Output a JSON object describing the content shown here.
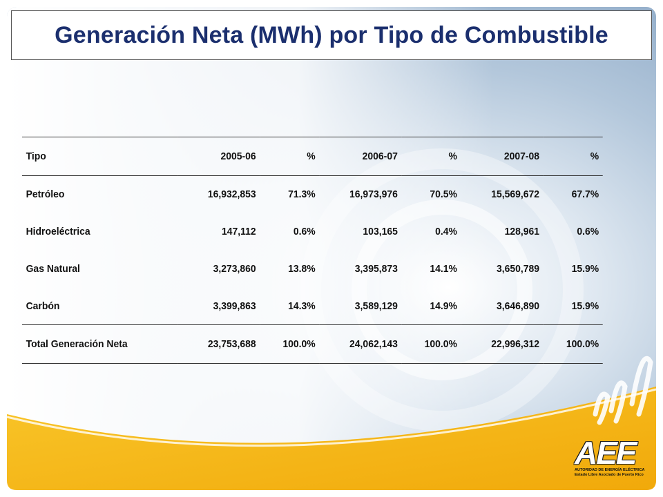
{
  "slide": {
    "title": "Generación Neta (MWh) por Tipo de Combustible"
  },
  "table": {
    "headers": [
      "Tipo",
      "2005-06",
      "%",
      "2006-07",
      "%",
      "2007-08",
      "%"
    ],
    "rows": [
      [
        "Petróleo",
        "16,932,853",
        "71.3%",
        "16,973,976",
        "70.5%",
        "15,569,672",
        "67.7%"
      ],
      [
        "Hidroeléctrica",
        "147,112",
        "0.6%",
        "103,165",
        "0.4%",
        "128,961",
        "0.6%"
      ],
      [
        "Gas Natural",
        "3,273,860",
        "13.8%",
        "3,395,873",
        "14.1%",
        "3,650,789",
        "15.9%"
      ],
      [
        "Carbón",
        "3,399,863",
        "14.3%",
        "3,589,129",
        "14.9%",
        "3,646,890",
        "15.9%"
      ],
      [
        "Total Generación Neta",
        "23,753,688",
        "100.0%",
        "24,062,143",
        "100.0%",
        "22,996,312",
        "100.0%"
      ]
    ]
  },
  "logo": {
    "letters": "AEE",
    "line1": "AUTORIDAD DE ENERGÍA ELÉCTRICA",
    "line2": "Estado Libre Asociado de Puerto Rico"
  },
  "colors": {
    "title": "#1b2f6e",
    "accent_yellow": "#f5b50f",
    "background_blue": "#a9bfd6"
  }
}
